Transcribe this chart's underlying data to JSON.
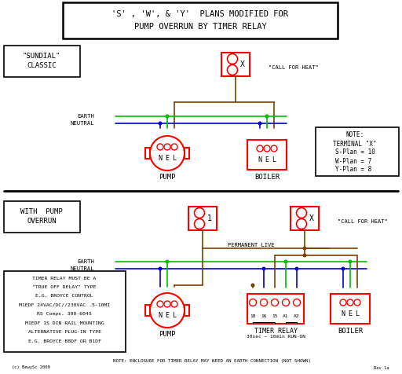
{
  "title_line1": "'S' , 'W', & 'Y'  PLANS MODIFIED FOR",
  "title_line2": "PUMP OVERRUN BY TIMER RELAY",
  "bg_color": "#ffffff",
  "wire_green": "#00bb00",
  "wire_blue": "#0000cc",
  "wire_brown": "#7B3F00",
  "RED": "#ff0000",
  "BLACK": "#000000",
  "note_lines": [
    "NOTE:",
    "TERMINAL \"X\"",
    "S-Plan = 10",
    "W-Plan = 7 ",
    "Y-Plan = 8 "
  ],
  "timer_info": [
    "TIMER RELAY MUST BE A",
    "\"TRUE OFF DELAY\" TYPE",
    "E.G. BROYCE CONTROL",
    "M1EDF 24VAC/DC//230VAC .5-10MI",
    "RS Comps. 300-6045",
    "M1EDF IS DIN RAIL MOUNTING",
    "ALTERNATIVE PLUG-IN TYPE",
    "E.G. BROYCE B8DF OR B1DF"
  ],
  "timer_note": "NOTE: ENCLOSURE FOR TIMER RELAY MAY NEED AN EARTH CONNECTION (NOT SHOWN)",
  "copyright": "(c) BewySc 2009",
  "rev": "Rev 1a"
}
